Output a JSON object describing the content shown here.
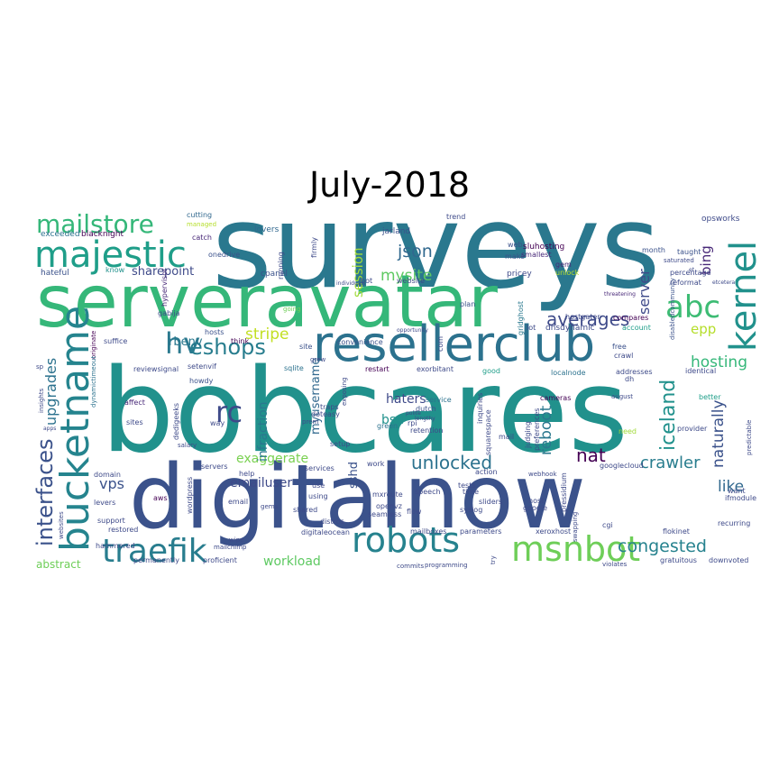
{
  "title": "July-2018",
  "palette": [
    "#440154",
    "#482878",
    "#3e4a89",
    "#31688e",
    "#26828e",
    "#1f9e89",
    "#35b779",
    "#6ece58",
    "#b5de2b",
    "#fde725"
  ],
  "words": [
    {
      "text": "surveys",
      "weight": 100,
      "color": "#2a788e"
    },
    {
      "text": "bobcares",
      "weight": 100,
      "color": "#21918c"
    },
    {
      "text": "digitalnow",
      "weight": 95,
      "color": "#3b528b"
    },
    {
      "text": "serveravatar",
      "weight": 80,
      "color": "#35b779"
    },
    {
      "text": "resellerclub",
      "weight": 52,
      "color": "#2c728e"
    },
    {
      "text": "bucketname",
      "weight": 42,
      "color": "#25848e"
    },
    {
      "text": "majestic",
      "weight": 36,
      "color": "#1f9e89"
    },
    {
      "text": "kernel",
      "weight": 34,
      "color": "#21918c"
    },
    {
      "text": "robots",
      "weight": 36,
      "color": "#26828e"
    },
    {
      "text": "msnbot",
      "weight": 36,
      "color": "#6ece58"
    },
    {
      "text": "traefik",
      "weight": 34,
      "color": "#287d8e"
    },
    {
      "text": "abc",
      "weight": 32,
      "color": "#3dbc74"
    },
    {
      "text": "hv",
      "weight": 30,
      "color": "#2a788e"
    },
    {
      "text": "rc",
      "weight": 30,
      "color": "#3e4a89"
    },
    {
      "text": "mailstore",
      "weight": 28,
      "color": "#35b779"
    },
    {
      "text": "eshops",
      "weight": 24,
      "color": "#287d8e"
    },
    {
      "text": "interfaces",
      "weight": 24,
      "color": "#3b528b"
    },
    {
      "text": "iceland",
      "weight": 22,
      "color": "#21918c"
    },
    {
      "text": "unlocked",
      "weight": 20,
      "color": "#2c728e"
    },
    {
      "text": "averages",
      "weight": 20,
      "color": "#3e4a89"
    },
    {
      "text": "congested",
      "weight": 19,
      "color": "#26828e"
    },
    {
      "text": "crawler",
      "weight": 18,
      "color": "#287d8e"
    },
    {
      "text": "nat",
      "weight": 20,
      "color": "#440154"
    },
    {
      "text": "hosting",
      "weight": 17,
      "color": "#35b779"
    },
    {
      "text": "json",
      "weight": 19,
      "color": "#31688e"
    },
    {
      "text": "mysite",
      "weight": 17,
      "color": "#5ec962"
    },
    {
      "text": "stripe",
      "weight": 17,
      "color": "#c2df23"
    },
    {
      "text": "upgrades",
      "weight": 16,
      "color": "#2c728e"
    },
    {
      "text": "reboot",
      "weight": 17,
      "color": "#2a788e"
    },
    {
      "text": "naturally",
      "weight": 17,
      "color": "#3b528b"
    },
    {
      "text": "like",
      "weight": 17,
      "color": "#31688e"
    },
    {
      "text": "server",
      "weight": 16,
      "color": "#3e4a89"
    },
    {
      "text": "bing",
      "weight": 15,
      "color": "#482878"
    },
    {
      "text": "epp",
      "weight": 15,
      "color": "#b5de2b"
    },
    {
      "text": "session",
      "weight": 15,
      "color": "#a0da39"
    },
    {
      "text": "vps",
      "weight": 16,
      "color": "#3b528b"
    },
    {
      "text": "workload",
      "weight": 14,
      "color": "#5ec962"
    },
    {
      "text": "exaggerate",
      "weight": 14,
      "color": "#7ad151"
    },
    {
      "text": "emailuser",
      "weight": 14,
      "color": "#3e4a89"
    },
    {
      "text": "infraction",
      "weight": 14,
      "color": "#2a788e"
    },
    {
      "text": "haters",
      "weight": 14,
      "color": "#3e4a89"
    },
    {
      "text": "bsd",
      "weight": 14,
      "color": "#21918c"
    },
    {
      "text": "myusername",
      "weight": 13,
      "color": "#31688e"
    },
    {
      "text": "sshd",
      "weight": 13,
      "color": "#3b528b"
    },
    {
      "text": "sharepoint",
      "weight": 13,
      "color": "#3e4a89"
    },
    {
      "text": "rbenv",
      "weight": 13,
      "color": "#2a788e"
    },
    {
      "text": "abstract",
      "weight": 12,
      "color": "#6ece58"
    },
    {
      "text": "opsworks",
      "weight": 9,
      "color": "#3e4a89"
    },
    {
      "text": "sluhosting",
      "weight": 9,
      "color": "#440154"
    },
    {
      "text": "trend",
      "weight": 8,
      "color": "#3e4a89"
    },
    {
      "text": "jarland",
      "weight": 9,
      "color": "#3b528b"
    },
    {
      "text": "lovers",
      "weight": 9,
      "color": "#31688e"
    },
    {
      "text": "onedrive",
      "weight": 8,
      "color": "#3b528b"
    },
    {
      "text": "blacknight",
      "weight": 9,
      "color": "#440154"
    },
    {
      "text": "exceeded",
      "weight": 9,
      "color": "#2c728e"
    },
    {
      "text": "cutting",
      "weight": 8,
      "color": "#31688e"
    },
    {
      "text": "catch",
      "weight": 8,
      "color": "#482878"
    },
    {
      "text": "managed",
      "weight": 7,
      "color": "#b5de2b"
    },
    {
      "text": "hateful",
      "weight": 9,
      "color": "#3b528b"
    },
    {
      "text": "know",
      "weight": 8,
      "color": "#21918c"
    },
    {
      "text": "cpanel",
      "weight": 9,
      "color": "#3b528b"
    },
    {
      "text": "firmly",
      "weight": 8,
      "color": "#3e4a89"
    },
    {
      "text": "running",
      "weight": 8,
      "color": "#3e4a89"
    },
    {
      "text": "web",
      "weight": 8,
      "color": "#3b528b"
    },
    {
      "text": "make",
      "weight": 8,
      "color": "#3b528b"
    },
    {
      "text": "smallest",
      "weight": 8,
      "color": "#482878"
    },
    {
      "text": "pricey",
      "weight": 9,
      "color": "#3e4a89"
    },
    {
      "text": "unlock",
      "weight": 8,
      "color": "#b5de2b"
    },
    {
      "text": "gem",
      "weight": 8,
      "color": "#482878"
    },
    {
      "text": "month",
      "weight": 8,
      "color": "#3b528b"
    },
    {
      "text": "taught",
      "weight": 8,
      "color": "#3b528b"
    },
    {
      "text": "saturated",
      "weight": 7,
      "color": "#3e4a89"
    },
    {
      "text": "account",
      "weight": 8,
      "color": "#1f9e89"
    },
    {
      "text": "percentage",
      "weight": 8,
      "color": "#3e4a89"
    },
    {
      "text": "threatening",
      "weight": 6,
      "color": "#482878"
    },
    {
      "text": "disabledcommunity",
      "weight": 7,
      "color": "#3b528b"
    },
    {
      "text": "hypervisor",
      "weight": 8,
      "color": "#482878"
    },
    {
      "text": "gabija",
      "weight": 8,
      "color": "#3e4a89"
    },
    {
      "text": "going",
      "weight": 7,
      "color": "#6ece58"
    },
    {
      "text": "plan",
      "weight": 8,
      "color": "#3b528b"
    },
    {
      "text": "gridghost",
      "weight": 8,
      "color": "#2a788e"
    },
    {
      "text": "hostgater",
      "weight": 8,
      "color": "#3e4a89"
    },
    {
      "text": "dnsdynamic",
      "weight": 9,
      "color": "#3e4a89"
    },
    {
      "text": "compares",
      "weight": 8,
      "color": "#440154"
    },
    {
      "text": "suffice",
      "weight": 8,
      "color": "#3e4a89"
    },
    {
      "text": "hosts",
      "weight": 8,
      "color": "#3b528b"
    },
    {
      "text": "think",
      "weight": 8,
      "color": "#440154"
    },
    {
      "text": "originate",
      "weight": 7,
      "color": "#440154"
    },
    {
      "text": "lot",
      "weight": 8,
      "color": "#3e4a89"
    },
    {
      "text": "free",
      "weight": 8,
      "color": "#3b528b"
    },
    {
      "text": "site",
      "weight": 8,
      "color": "#3b528b"
    },
    {
      "text": "sqlite",
      "weight": 8,
      "color": "#2c728e"
    },
    {
      "text": "grew",
      "weight": 7,
      "color": "#3e4a89"
    },
    {
      "text": "convenience",
      "weight": 8,
      "color": "#3b528b"
    },
    {
      "text": "restart",
      "weight": 8,
      "color": "#440154"
    },
    {
      "text": "exorbitant",
      "weight": 8,
      "color": "#3e4a89"
    },
    {
      "text": "good",
      "weight": 8,
      "color": "#1f9e89"
    },
    {
      "text": "localnode",
      "weight": 8,
      "color": "#2c728e"
    },
    {
      "text": "addresses",
      "weight": 8,
      "color": "#3e4a89"
    },
    {
      "text": "identical",
      "weight": 8,
      "color": "#3e4a89"
    },
    {
      "text": "reviewsignal",
      "weight": 8,
      "color": "#3e4a89"
    },
    {
      "text": "setenvif",
      "weight": 8,
      "color": "#3e4a89"
    },
    {
      "text": "dynamictimeout",
      "weight": 7,
      "color": "#2c728e"
    },
    {
      "text": "howdy",
      "weight": 8,
      "color": "#3b528b"
    },
    {
      "text": "affect",
      "weight": 8,
      "color": "#482878"
    },
    {
      "text": "dedigeeks",
      "weight": 8,
      "color": "#3e4a89"
    },
    {
      "text": "traps",
      "weight": 8,
      "color": "#3e4a89"
    },
    {
      "text": "doteasy",
      "weight": 8,
      "color": "#3e4a89"
    },
    {
      "text": "prem",
      "weight": 7,
      "color": "#3e4a89"
    },
    {
      "text": "dutch",
      "weight": 8,
      "color": "#3b528b"
    },
    {
      "text": "service",
      "weight": 8,
      "color": "#2c728e"
    },
    {
      "text": "rpi",
      "weight": 8,
      "color": "#3e4a89"
    },
    {
      "text": "green",
      "weight": 8,
      "color": "#2c728e"
    },
    {
      "text": "retention",
      "weight": 8,
      "color": "#3e4a89"
    },
    {
      "text": "inquiries",
      "weight": 8,
      "color": "#3e4a89"
    },
    {
      "text": "judging",
      "weight": 8,
      "color": "#3e4a89"
    },
    {
      "text": "preferences",
      "weight": 8,
      "color": "#3e4a89"
    },
    {
      "text": "cameras",
      "weight": 8,
      "color": "#440154"
    },
    {
      "text": "august",
      "weight": 7,
      "color": "#3e4a89"
    },
    {
      "text": "dh",
      "weight": 8,
      "color": "#3e4a89"
    },
    {
      "text": "better",
      "weight": 8,
      "color": "#1f9e89"
    },
    {
      "text": "provider",
      "weight": 8,
      "color": "#3e4a89"
    },
    {
      "text": "need",
      "weight": 8,
      "color": "#a0da39"
    },
    {
      "text": "predictable",
      "weight": 7,
      "color": "#3e4a89"
    },
    {
      "text": "want",
      "weight": 8,
      "color": "#3e4a89"
    },
    {
      "text": "ifmodule",
      "weight": 8,
      "color": "#3e4a89"
    },
    {
      "text": "recurring",
      "weight": 8,
      "color": "#3e4a89"
    },
    {
      "text": "sites",
      "weight": 8,
      "color": "#3e4a89"
    },
    {
      "text": "way",
      "weight": 8,
      "color": "#3e4a89"
    },
    {
      "text": "salary",
      "weight": 7,
      "color": "#3e4a89"
    },
    {
      "text": "insights",
      "weight": 7,
      "color": "#3e4a89"
    },
    {
      "text": "squarespace",
      "weight": 8,
      "color": "#3e4a89"
    },
    {
      "text": "mail",
      "weight": 8,
      "color": "#3e4a89"
    },
    {
      "text": "setup",
      "weight": 8,
      "color": "#3e4a89"
    },
    {
      "text": "work",
      "weight": 8,
      "color": "#3e4a89"
    },
    {
      "text": "services",
      "weight": 8,
      "color": "#3e4a89"
    },
    {
      "text": "action",
      "weight": 8,
      "color": "#3e4a89"
    },
    {
      "text": "webhook",
      "weight": 7,
      "color": "#3e4a89"
    },
    {
      "text": "googlecloud",
      "weight": 8,
      "color": "#3e4a89"
    },
    {
      "text": "domain",
      "weight": 8,
      "color": "#3e4a89"
    },
    {
      "text": "help",
      "weight": 8,
      "color": "#3e4a89"
    },
    {
      "text": "servers",
      "weight": 8,
      "color": "#3e4a89"
    },
    {
      "text": "aws",
      "weight": 8,
      "color": "#440154"
    },
    {
      "text": "levers",
      "weight": 8,
      "color": "#3e4a89"
    },
    {
      "text": "support",
      "weight": 8,
      "color": "#3e4a89"
    },
    {
      "text": "restored",
      "weight": 8,
      "color": "#3e4a89"
    },
    {
      "text": "wordpress",
      "weight": 8,
      "color": "#3e4a89"
    },
    {
      "text": "email",
      "weight": 8,
      "color": "#3e4a89"
    },
    {
      "text": "wipe",
      "weight": 7,
      "color": "#3e4a89"
    },
    {
      "text": "mailchimp",
      "weight": 7,
      "color": "#3e4a89"
    },
    {
      "text": "shared",
      "weight": 8,
      "color": "#3e4a89"
    },
    {
      "text": "using",
      "weight": 8,
      "color": "#3e4a89"
    },
    {
      "text": "mxroute",
      "weight": 8,
      "color": "#3e4a89"
    },
    {
      "text": "openvz",
      "weight": 8,
      "color": "#3e4a89"
    },
    {
      "text": "seamless",
      "weight": 8,
      "color": "#3e4a89"
    },
    {
      "text": "flow",
      "weight": 8,
      "color": "#3e4a89"
    },
    {
      "text": "speech",
      "weight": 8,
      "color": "#3e4a89"
    },
    {
      "text": "tests",
      "weight": 8,
      "color": "#3e4a89"
    },
    {
      "text": "time",
      "weight": 8,
      "color": "#3e4a89"
    },
    {
      "text": "sliders",
      "weight": 8,
      "color": "#3e4a89"
    },
    {
      "text": "syslog",
      "weight": 8,
      "color": "#3e4a89"
    },
    {
      "text": "host",
      "weight": 8,
      "color": "#3e4a89"
    },
    {
      "text": "google",
      "weight": 8,
      "color": "#3e4a89"
    },
    {
      "text": "pressidium",
      "weight": 8,
      "color": "#3e4a89"
    },
    {
      "text": "swapping",
      "weight": 7,
      "color": "#3e4a89"
    },
    {
      "text": "cgi",
      "weight": 8,
      "color": "#3e4a89"
    },
    {
      "text": "flokinet",
      "weight": 8,
      "color": "#3e4a89"
    },
    {
      "text": "websites",
      "weight": 7,
      "color": "#3e4a89"
    },
    {
      "text": "gems",
      "weight": 7,
      "color": "#3e4a89"
    },
    {
      "text": "distros",
      "weight": 8,
      "color": "#3e4a89"
    },
    {
      "text": "digitaleocean",
      "weight": 8,
      "color": "#3e4a89"
    },
    {
      "text": "mailboxes",
      "weight": 8,
      "color": "#3e4a89"
    },
    {
      "text": "parameters",
      "weight": 8,
      "color": "#3e4a89"
    },
    {
      "text": "xeroxhost",
      "weight": 8,
      "color": "#3e4a89"
    },
    {
      "text": "hammered",
      "weight": 8,
      "color": "#3e4a89"
    },
    {
      "text": "permanently",
      "weight": 8,
      "color": "#3e4a89"
    },
    {
      "text": "proficient",
      "weight": 8,
      "color": "#3e4a89"
    },
    {
      "text": "commits",
      "weight": 7,
      "color": "#3e4a89"
    },
    {
      "text": "programming",
      "weight": 7,
      "color": "#3e4a89"
    },
    {
      "text": "try",
      "weight": 7,
      "color": "#3e4a89"
    },
    {
      "text": "violates",
      "weight": 7,
      "color": "#3e4a89"
    },
    {
      "text": "gratuitous",
      "weight": 8,
      "color": "#3e4a89"
    },
    {
      "text": "downvoted",
      "weight": 8,
      "color": "#3e4a89"
    },
    {
      "text": "use",
      "weight": 8,
      "color": "#3e4a89"
    },
    {
      "text": "bot",
      "weight": 8,
      "color": "#3e4a89"
    },
    {
      "text": "website",
      "weight": 8,
      "color": "#3e4a89"
    },
    {
      "text": "crawl",
      "weight": 8,
      "color": "#3e4a89"
    },
    {
      "text": "reformat",
      "weight": 8,
      "color": "#3e4a89"
    },
    {
      "text": "com",
      "weight": 8,
      "color": "#3e4a89"
    },
    {
      "text": "individuals",
      "weight": 6,
      "color": "#3e4a89"
    },
    {
      "text": "opportunity",
      "weight": 6,
      "color": "#3e4a89"
    },
    {
      "text": "et",
      "weight": 6,
      "color": "#3e4a89"
    },
    {
      "text": "etcetera",
      "weight": 6,
      "color": "#3e4a89"
    },
    {
      "text": "polite",
      "weight": 6,
      "color": "#3e4a89"
    },
    {
      "text": "lengthy",
      "weight": 6,
      "color": "#3e4a89"
    },
    {
      "text": "exposing",
      "weight": 7,
      "color": "#3e4a89"
    },
    {
      "text": "sp",
      "weight": 7,
      "color": "#3e4a89"
    },
    {
      "text": "apps",
      "weight": 6,
      "color": "#3e4a89"
    }
  ]
}
